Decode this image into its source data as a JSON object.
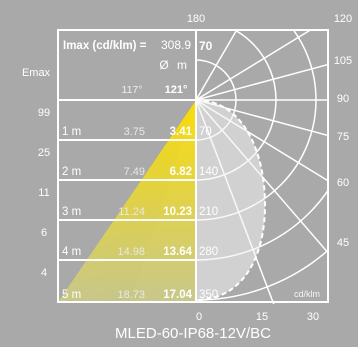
{
  "chart_data": {
    "type": "table",
    "header": {
      "imax_label": "Imax (cd/klm) =",
      "imax_value": "308.9",
      "column_headers": [
        "Ø",
        "m"
      ]
    },
    "beam_angles": [
      "117°",
      "121°"
    ],
    "rows": [
      {
        "distance": "1 m",
        "emax": "99",
        "d1": "3.75",
        "d2": "3.41",
        "cd": "70"
      },
      {
        "distance": "2 m",
        "emax": "25",
        "d1": "7.49",
        "d2": "6.82",
        "cd": "140"
      },
      {
        "distance": "3 m",
        "emax": "11",
        "d1": "11.24",
        "d2": "10.23",
        "cd": "210"
      },
      {
        "distance": "4 m",
        "emax": "6",
        "d1": "14.98",
        "d2": "13.64",
        "cd": "280"
      },
      {
        "distance": "5 m",
        "emax": "4",
        "d1": "18.73",
        "d2": "17.04",
        "cd": "350"
      }
    ],
    "emax_label": "Emax",
    "cd_header": "70",
    "polar": {
      "top_angle": "180",
      "right_angles": [
        "120",
        "105",
        "90",
        "75",
        "60",
        "45"
      ],
      "bottom_scale": [
        "0",
        "15",
        "30"
      ],
      "unit": "cd/klm"
    },
    "product_name": "MLED-60-IP68-12V/BC"
  },
  "colors": {
    "background": "#a9a9a9",
    "lines": "#ffffff",
    "cone_dark": "#5a5a60",
    "cone_mid": "#8c8c90",
    "cone_yellow": "#f2dc1a",
    "highlight": "#fff59a"
  }
}
